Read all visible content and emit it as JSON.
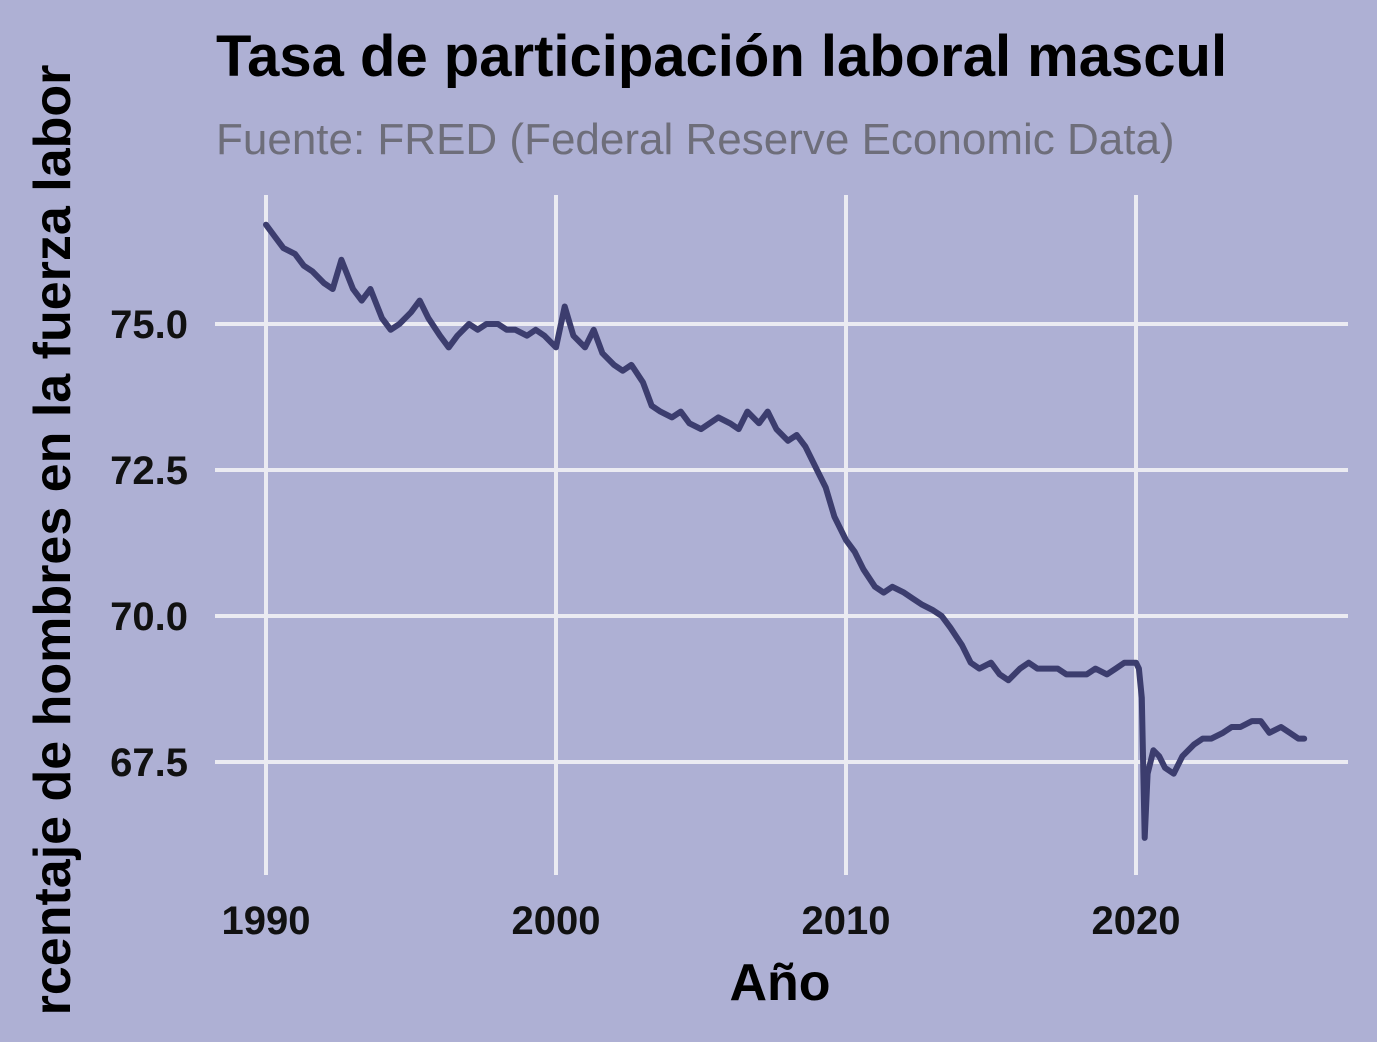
{
  "chart_data": {
    "type": "line",
    "title": "Tasa de participación laboral mascul",
    "subtitle": "Fuente: FRED (Federal Reserve Economic Data)",
    "xlabel": "Año",
    "ylabel": "rcentaje de hombres en la fuerza labor",
    "xlim": [
      1990,
      2026
    ],
    "ylim": [
      65.7,
      77.7
    ],
    "x_ticks": [
      "1990",
      "2000",
      "2010",
      "2020"
    ],
    "y_ticks": [
      "67.5",
      "70.0",
      "72.5",
      "75.0"
    ],
    "grid": true,
    "legend": "none",
    "colors": {
      "background": "#AEB0D4",
      "line": "#3C3D6E",
      "grid": "#EBEBF2"
    },
    "series": [
      {
        "x": [
          1990.0,
          1990.3,
          1990.6,
          1991.0,
          1991.3,
          1991.6,
          1992.0,
          1992.3,
          1992.6,
          1993.0,
          1993.3,
          1993.6,
          1994.0,
          1994.3,
          1994.6,
          1995.0,
          1995.3,
          1995.6,
          1996.0,
          1996.3,
          1996.6,
          1997.0,
          1997.3,
          1997.6,
          1998.0,
          1998.3,
          1998.6,
          1999.0,
          1999.3,
          1999.6,
          2000.0,
          2000.3,
          2000.6,
          2001.0,
          2001.3,
          2001.6,
          2002.0,
          2002.3,
          2002.6,
          2003.0,
          2003.3,
          2003.6,
          2004.0,
          2004.3,
          2004.6,
          2005.0,
          2005.3,
          2005.6,
          2006.0,
          2006.3,
          2006.6,
          2007.0,
          2007.3,
          2007.6,
          2008.0,
          2008.3,
          2008.6,
          2009.0,
          2009.3,
          2009.6,
          2010.0,
          2010.3,
          2010.6,
          2011.0,
          2011.3,
          2011.6,
          2012.0,
          2012.3,
          2012.6,
          2013.0,
          2013.3,
          2013.6,
          2014.0,
          2014.3,
          2014.6,
          2015.0,
          2015.3,
          2015.6,
          2016.0,
          2016.3,
          2016.6,
          2017.0,
          2017.3,
          2017.6,
          2018.0,
          2018.3,
          2018.6,
          2019.0,
          2019.3,
          2019.6,
          2020.0,
          2020.1,
          2020.2,
          2020.3,
          2020.4,
          2020.6,
          2020.8,
          2021.0,
          2021.3,
          2021.6,
          2022.0,
          2022.3,
          2022.6,
          2023.0,
          2023.3,
          2023.6,
          2024.0,
          2024.3,
          2024.6,
          2025.0,
          2025.3,
          2025.6,
          2025.8
        ],
        "y": [
          76.7,
          76.5,
          76.3,
          76.2,
          76.0,
          75.9,
          75.7,
          75.6,
          76.1,
          75.6,
          75.4,
          75.6,
          75.1,
          74.9,
          75.0,
          75.2,
          75.4,
          75.1,
          74.8,
          74.6,
          74.8,
          75.0,
          74.9,
          75.0,
          75.0,
          74.9,
          74.9,
          74.8,
          74.9,
          74.8,
          74.6,
          75.3,
          74.8,
          74.6,
          74.9,
          74.5,
          74.3,
          74.2,
          74.3,
          74.0,
          73.6,
          73.5,
          73.4,
          73.5,
          73.3,
          73.2,
          73.3,
          73.4,
          73.3,
          73.2,
          73.5,
          73.3,
          73.5,
          73.2,
          73.0,
          73.1,
          72.9,
          72.5,
          72.2,
          71.7,
          71.3,
          71.1,
          70.8,
          70.5,
          70.4,
          70.5,
          70.4,
          70.3,
          70.2,
          70.1,
          70.0,
          69.8,
          69.5,
          69.2,
          69.1,
          69.2,
          69.0,
          68.9,
          69.1,
          69.2,
          69.1,
          69.1,
          69.1,
          69.0,
          69.0,
          69.0,
          69.1,
          69.0,
          69.1,
          69.2,
          69.2,
          69.1,
          68.6,
          66.2,
          67.3,
          67.7,
          67.6,
          67.4,
          67.3,
          67.6,
          67.8,
          67.9,
          67.9,
          68.0,
          68.1,
          68.1,
          68.2,
          68.2,
          68.0,
          68.1,
          68.0,
          67.9,
          67.9
        ]
      }
    ]
  }
}
